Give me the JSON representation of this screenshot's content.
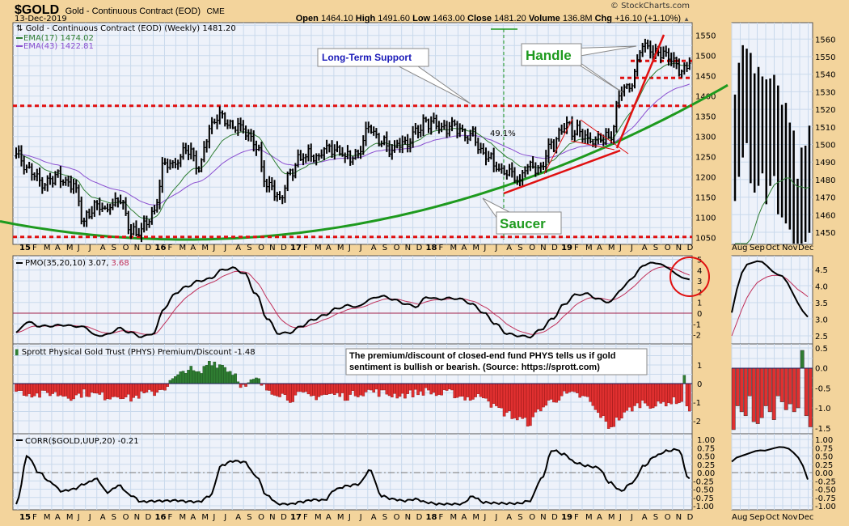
{
  "header": {
    "symbol": "$GOLD",
    "name": "Gold - Continuous Contract (EOD)",
    "exchange": "CME",
    "date": "13-Dec-2019",
    "copyright": "© StockCharts.com",
    "open_label": "Open",
    "open": "1464.10",
    "high_label": "High",
    "high": "1491.60",
    "low_label": "Low",
    "low": "1463.00",
    "close_label": "Close",
    "close": "1481.20",
    "volume_label": "Volume",
    "volume": "136.8M",
    "chg_label": "Chg",
    "chg": "+16.10 (+1.10%)",
    "chg_arrow": "▲"
  },
  "legend": {
    "price": "Gold - Continuous Contract (EOD) (Weekly) 1481.20",
    "ema17": "EMA(17) 1474.02",
    "ema43": "EMA(43) 1422.81",
    "pmo": "PMO(35,20,10) 3.07,",
    "pmo_signal": "3.68",
    "phys": "Sprott Physical Gold Trust (PHYS) Premium/Discount -1.48",
    "corr": "CORR($GOLD,UUP,20) -0.21"
  },
  "annotations": {
    "long_term_support": "Long-Term Support",
    "handle": "Handle",
    "saucer": "Saucer",
    "pct": "49.1%",
    "phys_note_1": "The premium/discount of closed-end fund PHYS tells us if gold",
    "phys_note_2": "sentiment is bullish or bearish. (Source: https://sprott.com)"
  },
  "colors": {
    "background": "#f3d49c",
    "panel": "#eef2fa",
    "grid": "#c9d9ec",
    "ema17": "#2e7d32",
    "ema43": "#8a4fd0",
    "saucer": "#1e9a1e",
    "trend": "#e01010",
    "signal": "#c0305a",
    "phys_pos": "#2f7d32",
    "phys_neg": "#e03030"
  },
  "chart_data": [
    {
      "type": "bar",
      "title": "Gold - Continuous Contract (EOD) (Weekly)",
      "frequency": "weekly (monthly closes shown)",
      "x_tick_labels": [
        "15",
        "F",
        "M",
        "A",
        "M",
        "J",
        "J",
        "A",
        "S",
        "O",
        "N",
        "D",
        "16",
        "F",
        "M",
        "A",
        "M",
        "J",
        "J",
        "A",
        "S",
        "O",
        "N",
        "D",
        "17",
        "F",
        "M",
        "A",
        "M",
        "J",
        "J",
        "A",
        "S",
        "O",
        "N",
        "D",
        "18",
        "F",
        "M",
        "A",
        "M",
        "J",
        "J",
        "A",
        "S",
        "O",
        "N",
        "D",
        "19",
        "F",
        "M",
        "A",
        "M",
        "J",
        "J",
        "A",
        "S",
        "O",
        "N",
        "D"
      ],
      "monthly_close": [
        1260,
        1220,
        1185,
        1195,
        1200,
        1175,
        1095,
        1130,
        1120,
        1150,
        1070,
        1065,
        1110,
        1230,
        1235,
        1275,
        1220,
        1330,
        1355,
        1320,
        1320,
        1270,
        1185,
        1145,
        1200,
        1255,
        1245,
        1265,
        1265,
        1245,
        1265,
        1320,
        1285,
        1275,
        1285,
        1305,
        1340,
        1320,
        1325,
        1315,
        1300,
        1255,
        1225,
        1205,
        1195,
        1225,
        1225,
        1285,
        1320,
        1320,
        1295,
        1285,
        1300,
        1410,
        1440,
        1530,
        1500,
        1510,
        1465,
        1481.2
      ],
      "y_ticks": [
        1050,
        1100,
        1150,
        1200,
        1250,
        1300,
        1350,
        1400,
        1450,
        1500,
        1550
      ],
      "ylim": [
        1040,
        1580
      ],
      "overlays": [
        "EMA(17)",
        "EMA(43)"
      ],
      "support_levels": [
        1376,
        1050
      ],
      "handle_levels": [
        1487,
        1445
      ]
    },
    {
      "type": "line",
      "title": "PMO(35,20,10)",
      "pmo_monthly": [
        -1.8,
        -0.8,
        -1.2,
        -1.2,
        -1.1,
        -1.2,
        -1.3,
        -2.1,
        -2.0,
        -1.4,
        -1.8,
        -2.2,
        -1.9,
        0.5,
        1.9,
        2.5,
        3.0,
        3.2,
        4.0,
        4.2,
        3.7,
        1.8,
        -0.5,
        -1.9,
        -1.8,
        -1.2,
        -0.6,
        -0.2,
        0.4,
        0.7,
        0.6,
        1.3,
        1.6,
        1.3,
        0.9,
        0.6,
        1.5,
        1.3,
        1.4,
        1.3,
        0.8,
        0.0,
        -1.0,
        -1.9,
        -2.1,
        -2.2,
        -1.5,
        -0.5,
        0.8,
        1.7,
        1.8,
        1.3,
        1.0,
        2.2,
        3.3,
        4.5,
        4.7,
        4.3,
        3.5,
        3.07
      ],
      "signal_last": 3.68,
      "y_ticks": [
        5,
        4,
        3,
        2,
        1,
        0,
        -1,
        -2
      ],
      "ylim": [
        -2.8,
        5.3
      ]
    },
    {
      "type": "bar",
      "title": "Sprott Physical Gold Trust (PHYS) Premium/Discount",
      "monthly": [
        -0.4,
        -0.5,
        -0.6,
        -0.5,
        -0.6,
        -0.7,
        -0.5,
        -0.6,
        -0.7,
        -0.6,
        -0.8,
        -0.6,
        -0.5,
        -0.2,
        0.3,
        0.8,
        0.5,
        1.2,
        1.0,
        0.6,
        -0.2,
        0.2,
        -0.3,
        -0.5,
        -0.8,
        -0.6,
        -0.7,
        -0.6,
        -0.6,
        -0.7,
        -0.5,
        -0.4,
        -0.5,
        -0.6,
        -0.6,
        -0.5,
        -0.4,
        -0.6,
        -0.5,
        -0.7,
        -0.8,
        -0.6,
        -1.3,
        -1.6,
        -1.9,
        -2.1,
        -1.3,
        -0.9,
        -0.6,
        -0.6,
        -0.8,
        -1.6,
        -2.3,
        -1.8,
        -1.3,
        -1.0,
        -1.2,
        -1.0,
        -0.9,
        -1.48
      ],
      "y_ticks": [
        1,
        0,
        -1,
        -2
      ],
      "ylim": [
        -2.6,
        2.1
      ]
    },
    {
      "type": "line",
      "title": "CORR($GOLD,UUP,20)",
      "monthly": [
        -0.95,
        0.5,
        0.0,
        -0.29,
        -0.56,
        -0.5,
        -0.34,
        -0.19,
        -0.59,
        -0.39,
        -0.68,
        -0.88,
        -0.86,
        -0.85,
        -0.84,
        -0.87,
        -0.88,
        -0.7,
        0.22,
        0.35,
        0.32,
        -0.1,
        -0.7,
        -0.95,
        -0.95,
        -0.88,
        -0.82,
        -0.83,
        -0.5,
        -0.4,
        -0.35,
        0.07,
        -0.7,
        -0.8,
        -0.85,
        -0.8,
        -0.9,
        -0.95,
        -0.95,
        -0.95,
        -0.72,
        -0.9,
        -0.92,
        -0.93,
        -0.93,
        -0.85,
        -0.2,
        0.68,
        0.55,
        0.3,
        0.2,
        0.15,
        -0.3,
        -0.55,
        -0.3,
        0.2,
        0.5,
        0.65,
        0.7,
        -0.21
      ],
      "y_ticks": [
        "1.00",
        "0.75",
        "0.50",
        "0.25",
        "0.00",
        "-0.25",
        "-0.50",
        "-0.75",
        "-1.00"
      ],
      "ylim": [
        -1.05,
        1.05
      ]
    },
    {
      "type": "inset",
      "x_tick_labels": [
        "Aug",
        "Sep",
        "Oct",
        "Nov",
        "Dec"
      ],
      "price_y_ticks": [
        1450,
        1460,
        1470,
        1480,
        1490,
        1500,
        1510,
        1520,
        1530,
        1540,
        1550,
        1560
      ],
      "pmo": [
        3.2,
        3.9,
        4.4,
        4.65,
        4.7,
        4.75,
        4.73,
        4.6,
        4.45,
        4.35,
        4.3,
        4.1,
        3.8,
        3.5,
        3.25,
        3.07
      ],
      "pmo_signal": [
        2.5,
        2.9,
        3.3,
        3.65,
        3.9,
        4.1,
        4.2,
        4.28,
        4.32,
        4.32,
        4.3,
        4.2,
        4.05,
        3.9,
        3.8,
        3.68
      ],
      "pmo_y_ticks": [
        "4.5",
        "4.0",
        "3.5",
        "3.0",
        "2.5"
      ],
      "phys": [
        -1.55,
        -0.95,
        -1.1,
        -1.2,
        -0.7,
        -1.35,
        -1.4,
        -1.25,
        -0.95,
        -1.1,
        -1.3,
        -0.7,
        -0.85,
        -1.05,
        -0.9,
        -1.1,
        -1.0,
        0.45,
        -1.2,
        -1.48
      ],
      "phys_y_ticks": [
        "0.5",
        "0.0",
        "-0.5",
        "-1.0",
        "-1.5"
      ],
      "corr": [
        0.33,
        0.45,
        0.5,
        0.55,
        0.6,
        0.65,
        0.67,
        0.66,
        0.7,
        0.74,
        0.77,
        0.76,
        0.72,
        0.6,
        0.45,
        0.2,
        -0.21
      ],
      "corr_y_ticks": [
        "1.00",
        "0.75",
        "0.50",
        "0.25",
        "0.00",
        "-0.25",
        "-0.50",
        "-0.75",
        "-1.00"
      ]
    }
  ]
}
